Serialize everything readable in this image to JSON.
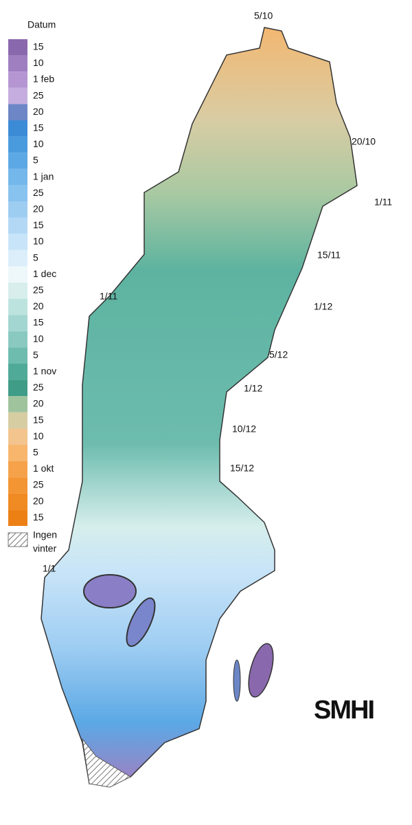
{
  "legend": {
    "title": "Datum",
    "items": [
      {
        "label": "15",
        "color": "#8a68ad"
      },
      {
        "label": "10",
        "color": "#a07fc1"
      },
      {
        "label": "1 feb",
        "color": "#b596d3"
      },
      {
        "label": "25",
        "color": "#c5aedf"
      },
      {
        "label": "20",
        "color": "#6c86c6"
      },
      {
        "label": "15",
        "color": "#3c8bd6"
      },
      {
        "label": "10",
        "color": "#4a9bde"
      },
      {
        "label": "5",
        "color": "#5ba8e5"
      },
      {
        "label": "1 jan",
        "color": "#73b7eb"
      },
      {
        "label": "25",
        "color": "#88c2ee"
      },
      {
        "label": "20",
        "color": "#9ecdf2"
      },
      {
        "label": "15",
        "color": "#b3d8f5"
      },
      {
        "label": "10",
        "color": "#c8e4f8"
      },
      {
        "label": "5",
        "color": "#dbeefa"
      },
      {
        "label": "1 dec",
        "color": "#eef7fa"
      },
      {
        "label": "25",
        "color": "#d7eeec"
      },
      {
        "label": "20",
        "color": "#bde3df"
      },
      {
        "label": "15",
        "color": "#a3d6d0"
      },
      {
        "label": "10",
        "color": "#89c9c0"
      },
      {
        "label": "5",
        "color": "#6dbcae"
      },
      {
        "label": "1 nov",
        "color": "#4faa98"
      },
      {
        "label": "25",
        "color": "#3f9c86"
      },
      {
        "label": "20",
        "color": "#9fc39c"
      },
      {
        "label": "15",
        "color": "#d6cda3"
      },
      {
        "label": "10",
        "color": "#f3c48e"
      },
      {
        "label": "5",
        "color": "#f7b66c"
      },
      {
        "label": "1 okt",
        "color": "#f5a24b"
      },
      {
        "label": "25",
        "color": "#f39533"
      },
      {
        "label": "20",
        "color": "#f08a22"
      },
      {
        "label": "15",
        "color": "#ec8015"
      }
    ],
    "no_winter": [
      "Ingen",
      "vinter"
    ]
  },
  "map_labels": [
    "5/10",
    "20/10",
    "1/11",
    "15/11",
    "1/12",
    "5/12",
    "1/12",
    "10/12",
    "15/12",
    "1/11",
    "1/1"
  ],
  "logo": "SMHI"
}
